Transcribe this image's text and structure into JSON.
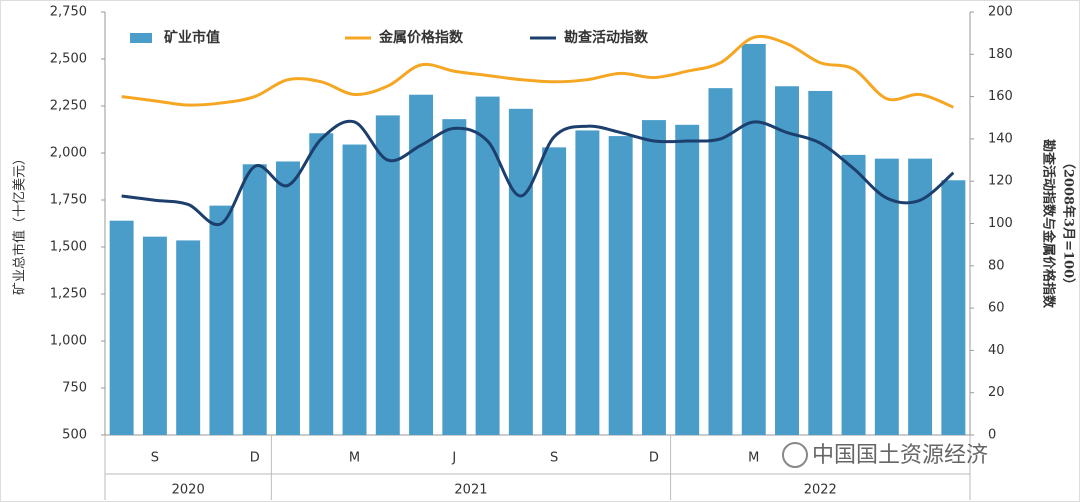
{
  "chart_data": {
    "type": "bar-line",
    "y_label": "矿业总市值（十亿美元）",
    "y2_label": [
      "勘查活动指数与金属价格指数",
      "（2008年3月=100）"
    ],
    "watermark": "中国国土资源经济",
    "categories": [
      null,
      "S",
      null,
      null,
      "D",
      null,
      null,
      "M",
      null,
      null,
      "J",
      null,
      null,
      "S",
      null,
      null,
      "D",
      null,
      null,
      "M",
      null,
      null,
      null,
      null,
      null,
      null
    ],
    "groups": [
      {
        "label": "2020",
        "count": 5
      },
      {
        "label": "2021",
        "count": 12
      },
      {
        "label": "2022",
        "count": 9
      }
    ],
    "series": [
      {
        "name": "矿业市值",
        "type": "bar",
        "color": "#4a9cc9",
        "values": [
          1640,
          1555,
          1535,
          1720,
          1940,
          1955,
          2105,
          2045,
          2200,
          2310,
          2180,
          2300,
          2235,
          2030,
          2120,
          2090,
          2175,
          2150,
          2345,
          2580,
          2355,
          2330,
          1990,
          1970,
          1970,
          1855
        ]
      },
      {
        "name": "金属价格指数",
        "type": "line",
        "axis": "y2",
        "color": "#f5a623",
        "values": [
          160,
          158,
          156,
          157,
          160,
          168,
          167,
          161,
          165,
          175,
          172,
          170,
          168,
          167,
          168,
          171,
          169,
          172,
          176,
          188,
          185,
          176,
          173,
          159,
          161,
          155
        ]
      },
      {
        "name": "勘查活动指数",
        "type": "line",
        "axis": "y2",
        "color": "#1c3f6e",
        "values": [
          113,
          111,
          109,
          100,
          127,
          118,
          140,
          148,
          130,
          137,
          145,
          139,
          113,
          141,
          146,
          143,
          139,
          139,
          140,
          148,
          143,
          138,
          126,
          112,
          111,
          124
        ]
      }
    ],
    "ylim": [
      500,
      2750
    ],
    "yticks": [
      {
        "value": 500,
        "label": "500"
      },
      {
        "value": 750,
        "label": "750"
      },
      {
        "value": 1000,
        "label": "1,000"
      },
      {
        "value": 1250,
        "label": "1,250"
      },
      {
        "value": 1500,
        "label": "1,500"
      },
      {
        "value": 1750,
        "label": "1,750"
      },
      {
        "value": 2000,
        "label": "2,000"
      },
      {
        "value": 2250,
        "label": "2,250"
      },
      {
        "value": 2500,
        "label": "2,500"
      },
      {
        "value": 2750,
        "label": "2,750"
      }
    ],
    "y2lim": [
      0,
      200
    ],
    "y2ticks": [
      0,
      20,
      40,
      60,
      80,
      100,
      120,
      140,
      160,
      180,
      200
    ]
  }
}
